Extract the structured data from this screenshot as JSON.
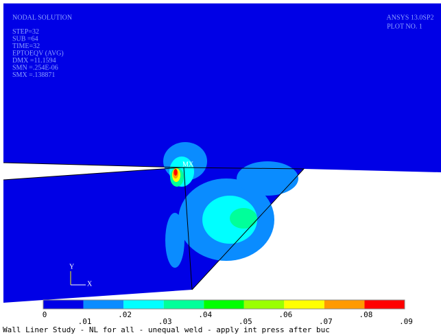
{
  "header": {
    "lines": [
      "NODAL SOLUTION",
      "STEP=32",
      "SUB =64",
      "TIME=32",
      "EPTOEQV  (AVG)",
      "DMX =11.1594",
      "SMN =.254E-06",
      "SMX =.138871"
    ],
    "product": "ANSYS 13.0SP2",
    "plot_no": "PLOT NO.   1"
  },
  "max_marker": "MX",
  "triad": {
    "y": "Y",
    "x": "X"
  },
  "legend": {
    "colors": [
      "#0000e6",
      "#0a8cff",
      "#00ffff",
      "#00ff9a",
      "#00ff00",
      "#9aff00",
      "#ffff00",
      "#ff9a00",
      "#ff0000"
    ],
    "labels": [
      "0",
      ".01",
      ".02",
      ".03",
      ".04",
      ".05",
      ".06",
      ".07",
      ".08",
      ".09"
    ]
  },
  "footer": "Wall Liner Study - NL for all - unequal weld - apply int press after buc"
}
